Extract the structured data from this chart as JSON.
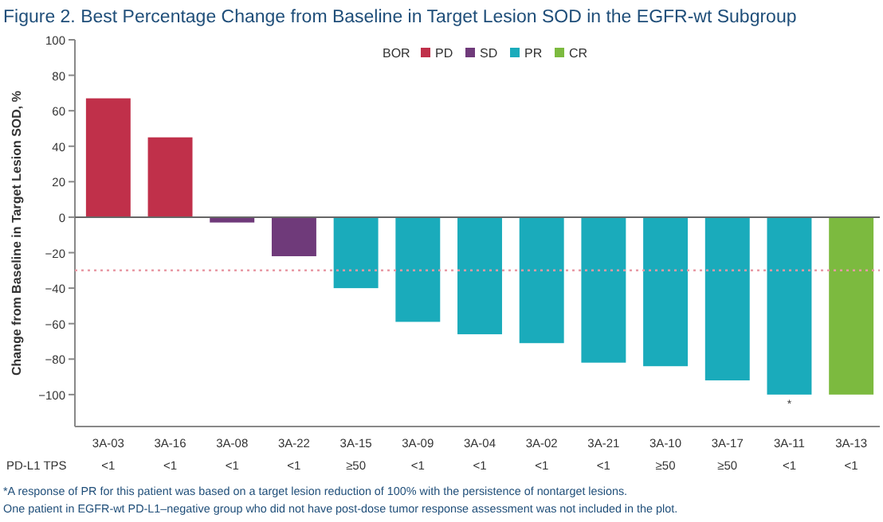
{
  "chart_data": {
    "type": "bar",
    "title": "Figure 2. Best Percentage Change from Baseline in Target Lesion SOD in the EGFR-wt Subgroup",
    "ylabel": "Change from Baseline in Target Lesion SOD, %",
    "legend_title": "BOR",
    "legend": "top",
    "categories": [
      "3A-03",
      "3A-16",
      "3A-08",
      "3A-22",
      "3A-15",
      "3A-09",
      "3A-04",
      "3A-02",
      "3A-21",
      "3A-10",
      "3A-17",
      "3A-11",
      "3A-13"
    ],
    "series": [
      {
        "name": "PD",
        "color": "#c0304a",
        "values": [
          67,
          45,
          null,
          null,
          null,
          null,
          null,
          null,
          null,
          null,
          null,
          null,
          null
        ]
      },
      {
        "name": "SD",
        "color": "#6f3a7a",
        "values": [
          null,
          null,
          -3,
          -22,
          null,
          null,
          null,
          null,
          null,
          null,
          null,
          null,
          null
        ]
      },
      {
        "name": "PR",
        "color": "#1aabbb",
        "values": [
          null,
          null,
          null,
          null,
          -40,
          -59,
          -66,
          -71,
          -82,
          -84,
          -92,
          -100,
          null
        ]
      },
      {
        "name": "CR",
        "color": "#7cba3f",
        "values": [
          null,
          null,
          null,
          null,
          null,
          null,
          null,
          null,
          null,
          null,
          null,
          null,
          -100
        ]
      }
    ],
    "ylim": [
      -118,
      100
    ],
    "yticks": [
      -100,
      -80,
      -60,
      -40,
      -20,
      0,
      20,
      40,
      60,
      80,
      100
    ],
    "ref_lines": [
      {
        "axis": "y",
        "value": -30,
        "color": "#e89aa5",
        "line_style": "dotted"
      }
    ],
    "annotations": [
      "PD-L1 TPS",
      "<1",
      "<1",
      "<1",
      "<1",
      "≥50",
      "<1",
      "<1",
      "<1",
      "<1",
      "≥50",
      "≥50",
      "<1",
      "<1",
      {
        "text": "*",
        "x": "3A-11",
        "y": -100
      },
      "*A response of PR for this patient was based on a target lesion reduction of 100% with the persistence of nontarget lesions.",
      "One patient in EGFR-wt PD-L1–negative group who did not have post-dose tumor response assessment was not included in the plot."
    ]
  }
}
